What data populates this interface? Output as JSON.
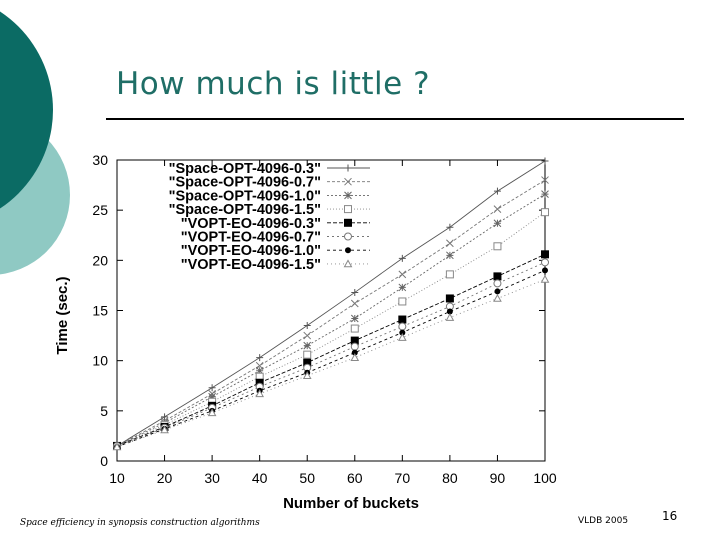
{
  "slide": {
    "title": "How much is little ?",
    "footer_left": "Space efficiency in synopsis construction algorithms",
    "footer_center": "VLDB 2005",
    "page_number": "16",
    "colors": {
      "title": "#1f6e66",
      "deco_dark": "#0b6b64",
      "deco_light": "#8fc9c3"
    }
  },
  "chart_data": {
    "type": "line",
    "title": "",
    "xlabel": "Number of buckets",
    "ylabel": "Time (sec.)",
    "x": [
      10,
      20,
      30,
      40,
      50,
      60,
      70,
      80,
      90,
      100
    ],
    "xlim": [
      10,
      100
    ],
    "ylim": [
      0,
      30
    ],
    "xticks": [
      "10",
      "20",
      "30",
      "40",
      "50",
      "60",
      "70",
      "80",
      "90",
      "100"
    ],
    "yticks": [
      "0",
      "5",
      "10",
      "15",
      "20",
      "25",
      "30"
    ],
    "legend_position": "top-left",
    "grid": false,
    "series": [
      {
        "name": "\"Space-OPT-4096-0.3\"",
        "marker": "plus",
        "values": [
          1.5,
          4.4,
          7.3,
          10.3,
          13.5,
          16.8,
          20.2,
          23.3,
          26.9,
          29.9
        ]
      },
      {
        "name": "\"Space-OPT-4096-0.7\"",
        "marker": "x",
        "values": [
          1.5,
          4.0,
          6.7,
          9.5,
          12.5,
          15.7,
          18.6,
          21.7,
          25.1,
          28.0
        ]
      },
      {
        "name": "\"Space-OPT-4096-1.0\"",
        "marker": "star",
        "values": [
          1.5,
          3.8,
          6.4,
          9.0,
          11.5,
          14.2,
          17.3,
          20.5,
          23.7,
          26.6
        ]
      },
      {
        "name": "\"Space-OPT-4096-1.5\"",
        "marker": "square",
        "values": [
          1.5,
          3.6,
          5.9,
          8.4,
          10.6,
          13.2,
          15.9,
          18.6,
          21.4,
          24.8
        ]
      },
      {
        "name": "\"VOPT-EO-4096-0.3\"",
        "marker": "fsquare",
        "values": [
          1.5,
          3.4,
          5.5,
          7.8,
          9.8,
          12.0,
          14.1,
          16.2,
          18.4,
          20.6
        ]
      },
      {
        "name": "\"VOPT-EO-4096-0.7\"",
        "marker": "circle",
        "values": [
          1.5,
          3.3,
          5.3,
          7.4,
          9.3,
          11.4,
          13.4,
          15.4,
          17.7,
          19.8
        ]
      },
      {
        "name": "\"VOPT-EO-4096-1.0\"",
        "marker": "fcircle",
        "values": [
          1.4,
          3.2,
          5.0,
          7.0,
          8.8,
          10.8,
          12.8,
          14.9,
          16.9,
          19.0
        ]
      },
      {
        "name": "\"VOPT-EO-4096-1.5\"",
        "marker": "tri",
        "values": [
          1.4,
          3.1,
          4.8,
          6.7,
          8.5,
          10.3,
          12.3,
          14.3,
          16.2,
          18.1
        ]
      }
    ]
  }
}
